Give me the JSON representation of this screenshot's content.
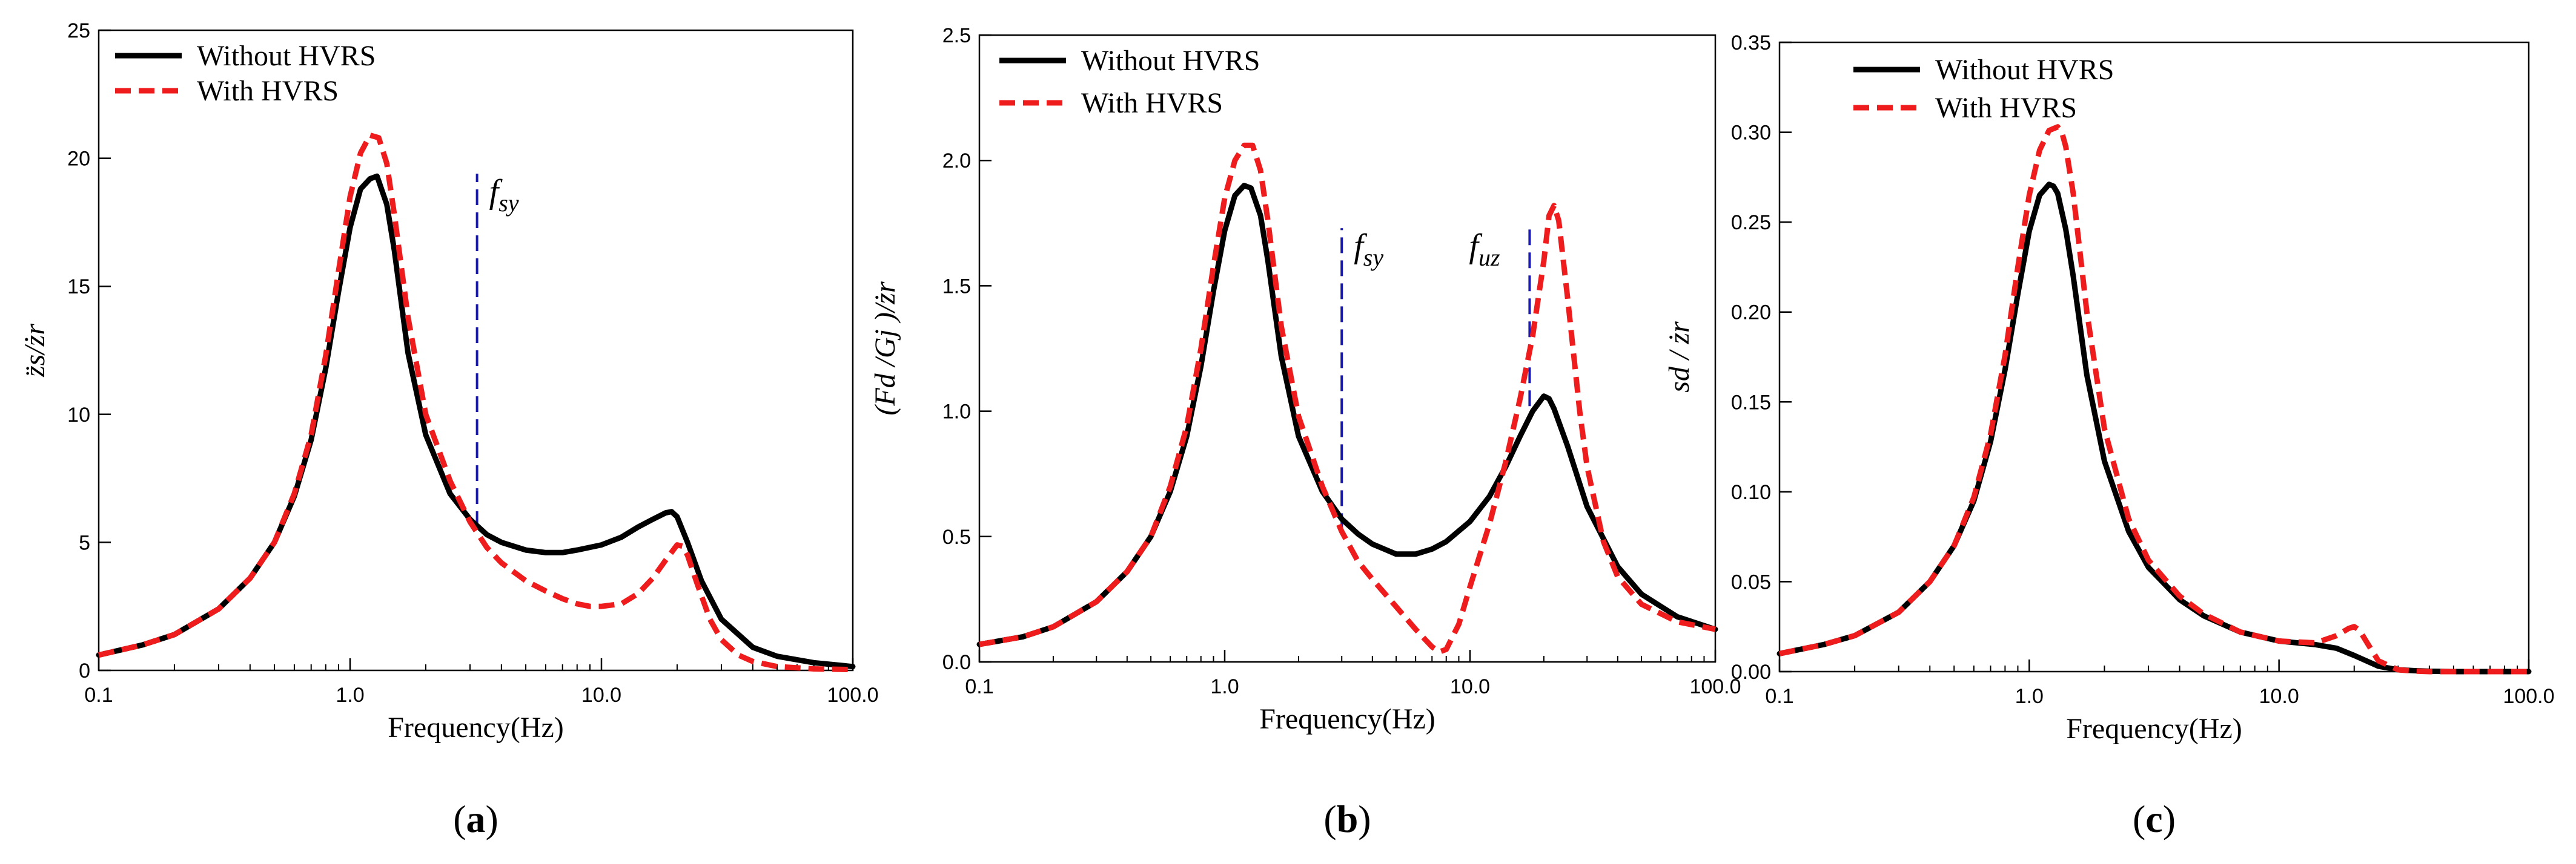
{
  "chart_data": [
    {
      "type": "line",
      "panel_label": "a",
      "xscale": "log",
      "xlim": [
        0.1,
        100.0
      ],
      "ylim": [
        0,
        25
      ],
      "xlabel": "Frequency(Hz)",
      "ylabel": "z̈s/żr",
      "xticks": [
        "0.1",
        "1.0",
        "10.0",
        "100.0"
      ],
      "yticks": [
        "0",
        "5",
        "10",
        "15",
        "20",
        "25"
      ],
      "legend_position": "top-left",
      "series": [
        {
          "name": "Without HVRS",
          "color": "#000000",
          "style": "solid",
          "x": [
            0.1,
            0.15,
            0.2,
            0.3,
            0.4,
            0.5,
            0.6,
            0.7,
            0.8,
            0.9,
            1.0,
            1.1,
            1.2,
            1.28,
            1.4,
            1.5,
            1.7,
            2.0,
            2.5,
            3.0,
            3.5,
            4.0,
            5.0,
            6.0,
            7.0,
            8.0,
            10.0,
            12.0,
            14.0,
            16.0,
            18.0,
            19.0,
            20.0,
            22.0,
            25.0,
            30.0,
            40.0,
            50.0,
            70.0,
            100.0
          ],
          "y": [
            0.6,
            1.0,
            1.4,
            2.4,
            3.6,
            5.0,
            6.8,
            9.0,
            11.8,
            14.8,
            17.3,
            18.8,
            19.2,
            19.3,
            18.2,
            16.4,
            12.4,
            9.2,
            6.9,
            5.9,
            5.3,
            5.0,
            4.7,
            4.6,
            4.6,
            4.7,
            4.9,
            5.2,
            5.6,
            5.9,
            6.15,
            6.2,
            6.0,
            5.0,
            3.5,
            2.0,
            0.9,
            0.55,
            0.3,
            0.15
          ]
        },
        {
          "name": "With HVRS",
          "color": "#ee1c1c",
          "style": "dashed",
          "x": [
            0.1,
            0.15,
            0.2,
            0.3,
            0.4,
            0.5,
            0.6,
            0.7,
            0.8,
            0.9,
            1.0,
            1.1,
            1.2,
            1.3,
            1.4,
            1.5,
            1.7,
            2.0,
            2.5,
            3.0,
            3.5,
            4.0,
            5.0,
            6.0,
            7.0,
            8.0,
            9.0,
            10.0,
            12.0,
            14.0,
            16.0,
            18.0,
            20.0,
            21.0,
            22.0,
            24.0,
            27.0,
            30.0,
            35.0,
            40.0,
            50.0,
            70.0,
            100.0
          ],
          "y": [
            0.6,
            1.0,
            1.4,
            2.4,
            3.6,
            5.0,
            6.9,
            9.2,
            12.3,
            15.6,
            18.5,
            20.2,
            20.9,
            20.8,
            19.8,
            17.8,
            13.8,
            10.0,
            7.4,
            5.8,
            4.8,
            4.2,
            3.5,
            3.1,
            2.8,
            2.6,
            2.5,
            2.5,
            2.6,
            3.0,
            3.6,
            4.3,
            4.9,
            4.85,
            4.5,
            3.4,
            2.0,
            1.2,
            0.6,
            0.35,
            0.15,
            0.06,
            0.03
          ]
        }
      ],
      "annotations": [
        {
          "text_main": "f",
          "text_sub": "sy",
          "x": 3.2,
          "y_start": 5.6,
          "y_end": 19.4,
          "line_color": "#1a1aa8"
        }
      ]
    },
    {
      "type": "line",
      "panel_label": "b",
      "xscale": "log",
      "xlim": [
        0.1,
        100.0
      ],
      "ylim": [
        0,
        2.5
      ],
      "xlabel": "Frequency(Hz)",
      "ylabel": "(Fd /Gj )/żr",
      "xticks": [
        "0.1",
        "1.0",
        "10.0",
        "100.0"
      ],
      "yticks": [
        "0.0",
        "0.5",
        "1.0",
        "1.5",
        "2.0",
        "2.5"
      ],
      "legend_position": "top-left",
      "series": [
        {
          "name": "Without HVRS",
          "color": "#000000",
          "style": "solid",
          "x": [
            0.1,
            0.15,
            0.2,
            0.3,
            0.4,
            0.5,
            0.6,
            0.7,
            0.8,
            0.9,
            1.0,
            1.1,
            1.2,
            1.28,
            1.4,
            1.5,
            1.7,
            2.0,
            2.5,
            3.0,
            3.5,
            4.0,
            5.0,
            6.0,
            7.0,
            8.0,
            10.0,
            12.0,
            14.0,
            16.0,
            18.0,
            20.0,
            21.0,
            22.0,
            25.0,
            30.0,
            40.0,
            50.0,
            70.0,
            100.0
          ],
          "y": [
            0.07,
            0.1,
            0.14,
            0.24,
            0.36,
            0.5,
            0.68,
            0.9,
            1.18,
            1.48,
            1.72,
            1.86,
            1.9,
            1.89,
            1.78,
            1.6,
            1.22,
            0.9,
            0.68,
            0.57,
            0.51,
            0.47,
            0.43,
            0.43,
            0.45,
            0.48,
            0.56,
            0.66,
            0.78,
            0.9,
            1.0,
            1.06,
            1.05,
            1.01,
            0.86,
            0.62,
            0.38,
            0.27,
            0.18,
            0.13
          ]
        },
        {
          "name": "With HVRS",
          "color": "#ee1c1c",
          "style": "dashed",
          "x": [
            0.1,
            0.15,
            0.2,
            0.3,
            0.4,
            0.5,
            0.6,
            0.7,
            0.8,
            0.9,
            1.0,
            1.1,
            1.2,
            1.3,
            1.4,
            1.5,
            1.7,
            2.0,
            2.5,
            3.0,
            3.5,
            4.0,
            5.0,
            6.0,
            7.0,
            7.5,
            8.0,
            9.0,
            10.0,
            12.0,
            14.0,
            16.0,
            18.0,
            20.0,
            21.0,
            22.0,
            23.0,
            25.0,
            28.0,
            30.0,
            35.0,
            40.0,
            50.0,
            70.0,
            100.0
          ],
          "y": [
            0.07,
            0.1,
            0.14,
            0.24,
            0.36,
            0.5,
            0.7,
            0.94,
            1.25,
            1.58,
            1.85,
            2.0,
            2.06,
            2.06,
            1.96,
            1.76,
            1.34,
            0.98,
            0.7,
            0.52,
            0.4,
            0.33,
            0.22,
            0.13,
            0.06,
            0.04,
            0.05,
            0.15,
            0.3,
            0.55,
            0.8,
            1.05,
            1.3,
            1.6,
            1.78,
            1.82,
            1.76,
            1.45,
            1.0,
            0.78,
            0.48,
            0.34,
            0.23,
            0.16,
            0.13
          ]
        }
      ],
      "annotations": [
        {
          "text_main": "f",
          "text_sub": "sy",
          "x": 3.0,
          "y_start": 0.53,
          "y_end": 1.73,
          "line_color": "#1a1aa8"
        },
        {
          "text_main": "f",
          "text_sub": "uz",
          "x": 17.5,
          "y_start": 1.02,
          "y_end": 1.73,
          "line_color": "#1a1aa8"
        }
      ]
    },
    {
      "type": "line",
      "panel_label": "c",
      "xscale": "log",
      "xlim": [
        0.1,
        100.0
      ],
      "ylim": [
        0,
        0.35
      ],
      "xlabel": "Frequency(Hz)",
      "ylabel": "sd / żr",
      "xticks": [
        "0.1",
        "1.0",
        "10.0",
        "100.0"
      ],
      "yticks": [
        "0.00",
        "0.05",
        "0.10",
        "0.15",
        "0.20",
        "0.25",
        "0.30",
        "0.35"
      ],
      "legend_position": "top-left",
      "series": [
        {
          "name": "Without HVRS",
          "color": "#000000",
          "style": "solid",
          "x": [
            0.1,
            0.15,
            0.2,
            0.3,
            0.4,
            0.5,
            0.6,
            0.7,
            0.8,
            0.9,
            1.0,
            1.1,
            1.2,
            1.25,
            1.3,
            1.4,
            1.5,
            1.7,
            2.0,
            2.5,
            3.0,
            4.0,
            5.0,
            7.0,
            10.0,
            14.0,
            17.0,
            20.0,
            25.0,
            30.0,
            35.0,
            40.0,
            50.0,
            70.0,
            100.0
          ],
          "y": [
            0.01,
            0.015,
            0.02,
            0.033,
            0.05,
            0.07,
            0.095,
            0.128,
            0.168,
            0.21,
            0.245,
            0.265,
            0.271,
            0.27,
            0.266,
            0.246,
            0.22,
            0.165,
            0.117,
            0.078,
            0.058,
            0.04,
            0.031,
            0.022,
            0.017,
            0.015,
            0.013,
            0.009,
            0.003,
            0.001,
            0.0005,
            0.0002,
            0.0,
            0.0,
            0.0
          ]
        },
        {
          "name": "With HVRS",
          "color": "#ee1c1c",
          "style": "dashed",
          "x": [
            0.1,
            0.15,
            0.2,
            0.3,
            0.4,
            0.5,
            0.6,
            0.7,
            0.8,
            0.9,
            1.0,
            1.1,
            1.2,
            1.3,
            1.35,
            1.4,
            1.5,
            1.7,
            2.0,
            2.5,
            3.0,
            4.0,
            5.0,
            7.0,
            10.0,
            14.0,
            17.0,
            19.0,
            20.0,
            21.0,
            23.0,
            25.0,
            30.0,
            35.0,
            40.0,
            50.0,
            70.0,
            100.0
          ],
          "y": [
            0.01,
            0.015,
            0.02,
            0.033,
            0.05,
            0.07,
            0.097,
            0.132,
            0.176,
            0.225,
            0.265,
            0.29,
            0.301,
            0.303,
            0.3,
            0.292,
            0.266,
            0.2,
            0.135,
            0.085,
            0.062,
            0.042,
            0.032,
            0.022,
            0.017,
            0.016,
            0.02,
            0.024,
            0.025,
            0.023,
            0.014,
            0.006,
            0.001,
            0.0003,
            0.0,
            0.0,
            0.0,
            0.0
          ]
        }
      ]
    }
  ]
}
